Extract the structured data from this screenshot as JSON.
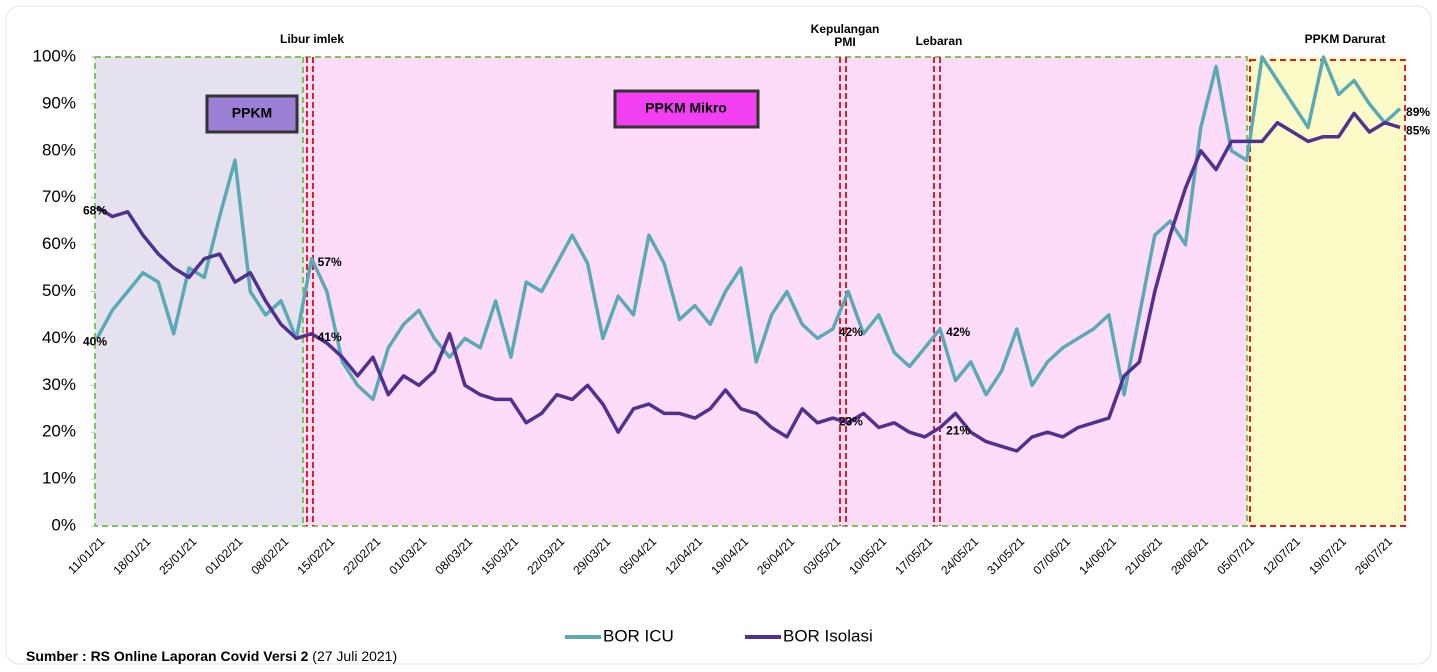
{
  "chart_data": {
    "type": "line",
    "categories": [
      "11/01/21",
      null,
      null,
      "18/01/21",
      null,
      null,
      "25/01/21",
      null,
      null,
      "01/02/21",
      null,
      null,
      "08/02/21",
      null,
      null,
      "15/02/21",
      null,
      null,
      "22/02/21",
      null,
      null,
      "01/03/21",
      null,
      null,
      "08/03/21",
      null,
      null,
      "15/03/21",
      null,
      null,
      "22/03/21",
      null,
      null,
      "29/03/21",
      null,
      null,
      "05/04/21",
      null,
      null,
      "12/04/21",
      null,
      null,
      "19/04/21",
      null,
      null,
      "26/04/21",
      null,
      null,
      "03/05/21",
      null,
      null,
      "10/05/21",
      null,
      null,
      "17/05/21",
      null,
      null,
      "24/05/21",
      null,
      null,
      "31/05/21",
      null,
      null,
      "07/06/21",
      null,
      null,
      "14/06/21",
      null,
      null,
      "21/06/21",
      null,
      null,
      "28/06/21",
      null,
      null,
      "05/07/21",
      null,
      null,
      "12/07/21",
      null,
      null,
      "19/07/21",
      null,
      null,
      "26/07/21",
      null
    ],
    "series": [
      {
        "name": "BOR ICU",
        "color": "#5aaab5",
        "values": [
          40,
          46,
          50,
          54,
          52,
          41,
          55,
          53,
          66,
          78,
          50,
          45,
          48,
          40,
          57,
          50,
          35,
          30,
          27,
          38,
          43,
          46,
          40,
          36,
          40,
          38,
          48,
          36,
          52,
          50,
          56,
          62,
          56,
          40,
          49,
          45,
          62,
          56,
          44,
          47,
          43,
          50,
          55,
          35,
          45,
          50,
          43,
          40,
          42,
          50,
          41,
          45,
          37,
          34,
          38,
          42,
          31,
          35,
          28,
          33,
          42,
          30,
          35,
          38,
          40,
          42,
          45,
          28,
          45,
          62,
          65,
          60,
          85,
          98,
          80,
          78,
          100,
          95,
          90,
          85,
          100,
          92,
          95,
          90,
          86,
          89
        ],
        "value_labels": [
          "40%",
          null,
          null,
          null,
          null,
          null,
          null,
          null,
          null,
          null,
          null,
          null,
          null,
          null,
          "57%",
          null,
          null,
          null,
          null,
          null,
          null,
          null,
          null,
          null,
          null,
          null,
          null,
          null,
          null,
          null,
          null,
          null,
          null,
          null,
          null,
          null,
          null,
          null,
          null,
          null,
          null,
          null,
          null,
          null,
          null,
          null,
          null,
          null,
          "42%",
          null,
          null,
          null,
          null,
          null,
          null,
          "42%",
          null,
          null,
          null,
          null,
          null,
          null,
          null,
          null,
          null,
          null,
          null,
          null,
          null,
          null,
          null,
          null,
          null,
          null,
          null,
          null,
          null,
          null,
          null,
          null,
          null,
          null,
          null,
          null,
          null,
          "89%"
        ]
      },
      {
        "name": "BOR Isolasi",
        "color": "#51318f",
        "values": [
          68,
          66,
          67,
          62,
          58,
          55,
          53,
          57,
          58,
          52,
          54,
          48,
          43,
          40,
          41,
          39,
          36,
          32,
          36,
          28,
          32,
          30,
          33,
          41,
          30,
          28,
          27,
          27,
          22,
          24,
          28,
          27,
          30,
          26,
          20,
          25,
          26,
          24,
          24,
          23,
          25,
          29,
          25,
          24,
          21,
          19,
          25,
          22,
          23,
          22,
          24,
          21,
          22,
          20,
          19,
          21,
          24,
          20,
          18,
          17,
          16,
          19,
          20,
          19,
          21,
          22,
          23,
          32,
          35,
          50,
          62,
          72,
          80,
          76,
          82,
          82,
          82,
          86,
          84,
          82,
          83,
          83,
          88,
          84,
          86,
          85
        ],
        "value_labels": [
          "68%",
          null,
          null,
          null,
          null,
          null,
          null,
          null,
          null,
          null,
          null,
          null,
          null,
          null,
          "41%",
          null,
          null,
          null,
          null,
          null,
          null,
          null,
          null,
          null,
          null,
          null,
          null,
          null,
          null,
          null,
          null,
          null,
          null,
          null,
          null,
          null,
          null,
          null,
          null,
          null,
          null,
          null,
          null,
          null,
          null,
          null,
          null,
          null,
          "23%",
          null,
          null,
          null,
          null,
          null,
          null,
          "21%",
          null,
          null,
          null,
          null,
          null,
          null,
          null,
          null,
          null,
          null,
          null,
          null,
          null,
          null,
          null,
          null,
          null,
          null,
          null,
          null,
          null,
          null,
          null,
          null,
          null,
          null,
          null,
          null,
          null,
          "85%"
        ]
      }
    ],
    "ylim": [
      0,
      100
    ],
    "yticks": [
      {
        "value": 0,
        "label": "0%"
      },
      {
        "value": 10,
        "label": "10%"
      },
      {
        "value": 20,
        "label": "20%"
      },
      {
        "value": 30,
        "label": "30%"
      },
      {
        "value": 40,
        "label": "40%"
      },
      {
        "value": 50,
        "label": "50%"
      },
      {
        "value": 60,
        "label": "60%"
      },
      {
        "value": 70,
        "label": "70%"
      },
      {
        "value": 80,
        "label": "80%"
      },
      {
        "value": 90,
        "label": "90%"
      },
      {
        "value": 100,
        "label": "100%"
      }
    ],
    "events": [
      "Libur imlek",
      "Kepulangan PMI",
      "Lebaran"
    ],
    "periods": [
      "PPKM",
      "PPKM Mikro",
      "PPKM Darurat"
    ],
    "source": "Sumber : RS Online Laporan Covid Versi 2",
    "source_date": "(27 Juli 2021)"
  }
}
